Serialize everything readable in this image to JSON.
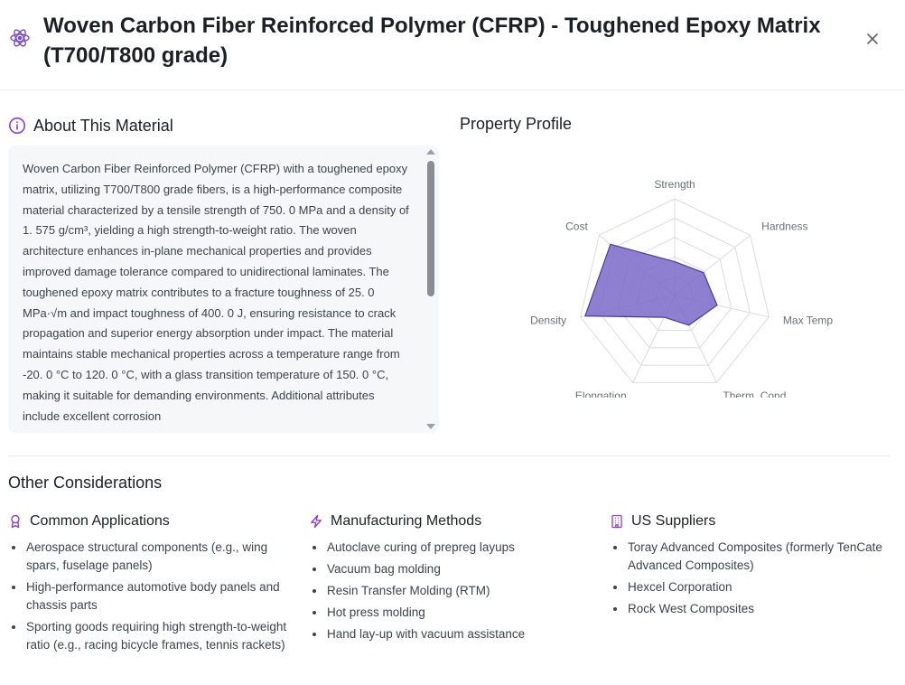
{
  "header": {
    "title": "Woven Carbon Fiber Reinforced Polymer (CFRP) - Toughened Epoxy Matrix (T700/T800 grade)",
    "icon": "atom-icon",
    "close_icon": "close-icon"
  },
  "about": {
    "heading": "About This Material",
    "text": "Woven Carbon Fiber Reinforced Polymer (CFRP) with a toughened epoxy matrix, utilizing T700/T800 grade fibers, is a high-performance composite material characterized by a tensile strength of 750. 0 MPa and a density of 1. 575 g/cm³, yielding a high strength-to-weight ratio. The woven architecture enhances in-plane mechanical properties and provides improved damage tolerance compared to unidirectional laminates. The toughened epoxy matrix contributes to a fracture toughness of 25. 0 MPa·√m and impact toughness of 400. 0 J, ensuring resistance to crack propagation and superior energy absorption under impact. The material maintains stable mechanical properties across a temperature range from -20. 0 °C to 120. 0 °C, with a glass transition temperature of 150. 0 °C, making it suitable for demanding environments. Additional attributes include excellent corrosion"
  },
  "profile": {
    "title": "Property Profile",
    "axes": [
      "Strength",
      "Hardness",
      "Max Temp",
      "Therm. Cond.",
      "Elongation",
      "Density",
      "Cost"
    ],
    "values": [
      0.35,
      0.38,
      0.45,
      0.34,
      0.25,
      0.95,
      0.85
    ],
    "fill_color": "#7b68c8",
    "stroke_color": "#4a3c9c"
  },
  "other": {
    "title": "Other Considerations",
    "columns": [
      {
        "heading": "Common Applications",
        "icon": "award-icon",
        "items": [
          "Aerospace structural components (e.g., wing spars, fuselage panels)",
          "High-performance automotive body panels and chassis parts",
          "Sporting goods requiring high strength-to-weight ratio (e.g., racing bicycle frames, tennis rackets)"
        ]
      },
      {
        "heading": "Manufacturing Methods",
        "icon": "lightning-icon",
        "items": [
          "Autoclave curing of prepreg layups",
          "Vacuum bag molding",
          "Resin Transfer Molding (RTM)",
          "Hot press molding",
          "Hand lay-up with vacuum assistance"
        ]
      },
      {
        "heading": "US Suppliers",
        "icon": "building-icon",
        "items": [
          "Toray Advanced Composites (formerly TenCate Advanced Composites)",
          "Hexcel Corporation",
          "Rock West Composites"
        ]
      }
    ]
  },
  "colors": {
    "accent": "#8b3fc6"
  }
}
